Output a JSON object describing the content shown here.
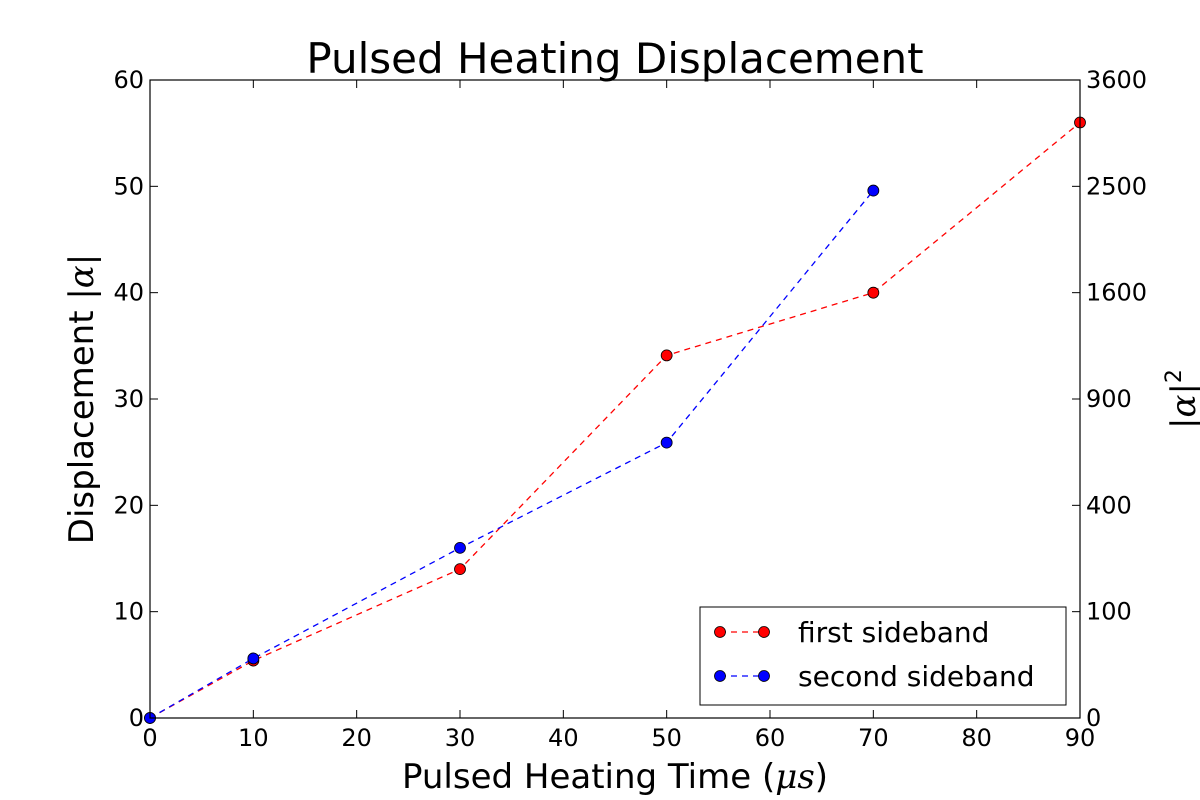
{
  "chart_data": {
    "type": "line",
    "title": "Pulsed Heating Displacement",
    "xlabel": "Pulsed Heating Time",
    "xlabel_math": "μs",
    "ylabel": "Displacement",
    "ylabel_math": "|α|",
    "y2label_math": "|α|",
    "y2label_sup": "2",
    "xlim": [
      0,
      90
    ],
    "ylim": [
      0,
      60
    ],
    "x_ticks": [
      "0",
      "10",
      "20",
      "30",
      "40",
      "50",
      "60",
      "70",
      "80",
      "90"
    ],
    "y_ticks": [
      "0",
      "10",
      "20",
      "30",
      "40",
      "50",
      "60"
    ],
    "y2_ticks": [
      "0",
      "100",
      "400",
      "900",
      "1600",
      "2500",
      "3600"
    ],
    "legend_position": "lower-right",
    "series": [
      {
        "name": "first sideband",
        "color": "#ff0000",
        "x": [
          0,
          10,
          30,
          50,
          70,
          90
        ],
        "y": [
          0,
          5.4,
          14.0,
          34.1,
          40.0,
          56.0
        ]
      },
      {
        "name": "second sideband",
        "color": "#0000ff",
        "x": [
          0,
          10,
          30,
          50,
          70
        ],
        "y": [
          0,
          5.6,
          16.0,
          25.9,
          49.6
        ]
      }
    ]
  }
}
